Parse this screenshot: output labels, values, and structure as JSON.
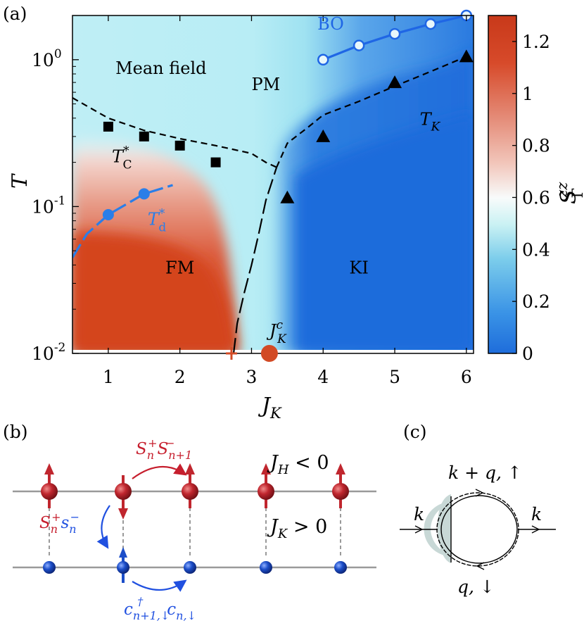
{
  "panels": {
    "a": "(a)",
    "b": "(b)",
    "c": "(c)"
  },
  "chart_data": {
    "type": "heatmap",
    "xlabel": "J",
    "xlabel_sub": "K",
    "ylabel": "T",
    "yscale": "log",
    "xlim": [
      0.5,
      6.1
    ],
    "ylim": [
      0.01,
      2.0
    ],
    "x_ticks": [
      1,
      2,
      3,
      4,
      5,
      6
    ],
    "x_tick_labels": [
      "1",
      "2",
      "3",
      "4",
      "5",
      "6"
    ],
    "y_ticks": [
      0.01,
      0.1,
      1
    ],
    "y_tick_labels": [
      {
        "base": "10",
        "exp": "-2"
      },
      {
        "base": "10",
        "exp": "-1"
      },
      {
        "base": "10",
        "exp": "0"
      }
    ],
    "colorbar": {
      "label": "S",
      "label_sup": "zz",
      "label_sub": "Γ",
      "range": [
        0,
        1.3
      ],
      "ticks": [
        0,
        0.2,
        0.4,
        0.6,
        0.8,
        1,
        1.2
      ],
      "tick_labels": [
        "0",
        "0.2",
        "0.4",
        "0.6",
        "0.8",
        "1",
        "1.2"
      ],
      "colors": [
        "#1e6ddb",
        "#3a93e6",
        "#7ccdeb",
        "#c9f1f3",
        "#f8fbfb",
        "#f2c7bc",
        "#e48a76",
        "#d74a2a",
        "#c8391a"
      ]
    },
    "regions": [
      {
        "label": "PM",
        "x": 3.2,
        "y": 0.62
      },
      {
        "label": "FM",
        "x": 2.0,
        "y": 0.035
      },
      {
        "label": "KI",
        "x": 4.5,
        "y": 0.035
      }
    ],
    "series": [
      {
        "name": "T_C^*",
        "marker": "square",
        "color": "#000000",
        "x": [
          1.0,
          1.5,
          2.0,
          2.5
        ],
        "y": [
          0.35,
          0.3,
          0.26,
          0.2
        ]
      },
      {
        "name": "T_K",
        "marker": "triangle",
        "color": "#000000",
        "x": [
          3.5,
          4.0,
          5.0,
          6.0
        ],
        "y": [
          0.115,
          0.3,
          0.7,
          1.05
        ]
      },
      {
        "name": "BO",
        "marker": "open-circle",
        "color": "#1f66e5",
        "x": [
          4.0,
          4.5,
          5.0,
          5.5,
          6.0
        ],
        "y": [
          1.0,
          1.25,
          1.5,
          1.75,
          2.0
        ]
      },
      {
        "name": "T_d^*",
        "marker": "filled-circle",
        "color": "#2a7ee8",
        "x": [
          1.0,
          1.5
        ],
        "y": [
          0.088,
          0.122
        ]
      }
    ],
    "lines": [
      {
        "name": "Mean field",
        "style": "dashed",
        "color": "#000000",
        "x": [
          0.5,
          1.0,
          1.5,
          2.0,
          2.5,
          3.0,
          3.2,
          3.35
        ],
        "y": [
          0.55,
          0.4,
          0.33,
          0.29,
          0.26,
          0.23,
          0.2,
          0.185
        ]
      },
      {
        "name": "T_K crossover",
        "style": "dashed",
        "color": "#000000",
        "x": [
          3.35,
          3.5,
          3.8,
          4.0,
          4.5,
          5.0,
          5.5,
          6.0
        ],
        "y": [
          0.185,
          0.27,
          0.35,
          0.42,
          0.52,
          0.66,
          0.83,
          1.05
        ]
      },
      {
        "name": "FM-KI boundary",
        "style": "long-dash",
        "color": "#000000",
        "x": [
          2.75,
          2.8,
          2.9,
          3.0,
          3.1,
          3.2,
          3.35
        ],
        "y": [
          0.01,
          0.016,
          0.026,
          0.04,
          0.065,
          0.11,
          0.185
        ]
      },
      {
        "name": "BO fit",
        "style": "solid",
        "color": "#1f66e5",
        "x": [
          4.0,
          4.5,
          5.0,
          5.5,
          6.0
        ],
        "y": [
          1.0,
          1.25,
          1.5,
          1.75,
          2.0
        ]
      },
      {
        "name": "T_d fit",
        "style": "long-dash",
        "color": "#2a7ee8",
        "x": [
          0.5,
          0.7,
          1.0,
          1.5,
          1.9
        ],
        "y": [
          0.045,
          0.065,
          0.088,
          0.122,
          0.14
        ]
      }
    ],
    "annotations": [
      {
        "text": "Mean field",
        "x": 1.1,
        "y": 0.8
      },
      {
        "text": "BO",
        "x": 3.92,
        "y": 1.6,
        "color": "#1f66e5"
      },
      {
        "text": "T",
        "sub": "K",
        "x": 5.35,
        "y": 0.36
      },
      {
        "text": "T",
        "sup": "*",
        "sub": "C",
        "x": 1.05,
        "y": 0.2
      },
      {
        "text": "T",
        "sup": "*",
        "sub": "d",
        "x": 1.55,
        "y": 0.075,
        "color": "#2a7ee8"
      },
      {
        "text": "J",
        "sup": "c",
        "sub": "K",
        "x": 3.25,
        "y": 0.013
      },
      {
        "text": "J_K^c marker",
        "marker": "big-circle",
        "x": 3.25,
        "y": 0.01,
        "color": "#d24a25"
      },
      {
        "text": "cross marker",
        "marker": "plus",
        "x": 2.72,
        "y": 0.01,
        "color": "#d24a25"
      }
    ]
  },
  "panel_b": {
    "hop_top": {
      "a": "S",
      "a_sup": "+",
      "a_sub": "n",
      "b": "S",
      "b_sup": "−",
      "b_sub": "n+1"
    },
    "flip_left": {
      "a": "S",
      "a_sup": "+",
      "a_sub": "n",
      "b": "s",
      "b_sup": "−",
      "b_sub": "n"
    },
    "hop_bottom": {
      "a": "c",
      "a_sup": "†",
      "a_sub": "n+1,↓",
      "b": "c",
      "b_sub": "n,↓"
    },
    "jh": {
      "j": "J",
      "sub": "H",
      "rel": " < 0"
    },
    "jk": {
      "j": "J",
      "sub": "K",
      "rel": " > 0"
    }
  },
  "panel_c": {
    "k_left": "k",
    "k_right": "k",
    "top_label": "k + q, ↑",
    "bottom_label": "q, ↓"
  },
  "colors": {
    "red_spin": "#c0262e",
    "blue_spin": "#1c4ec9",
    "red_text": "#c61e2d",
    "blue_text": "#2050e0",
    "line_gray": "#9a9a9a"
  }
}
